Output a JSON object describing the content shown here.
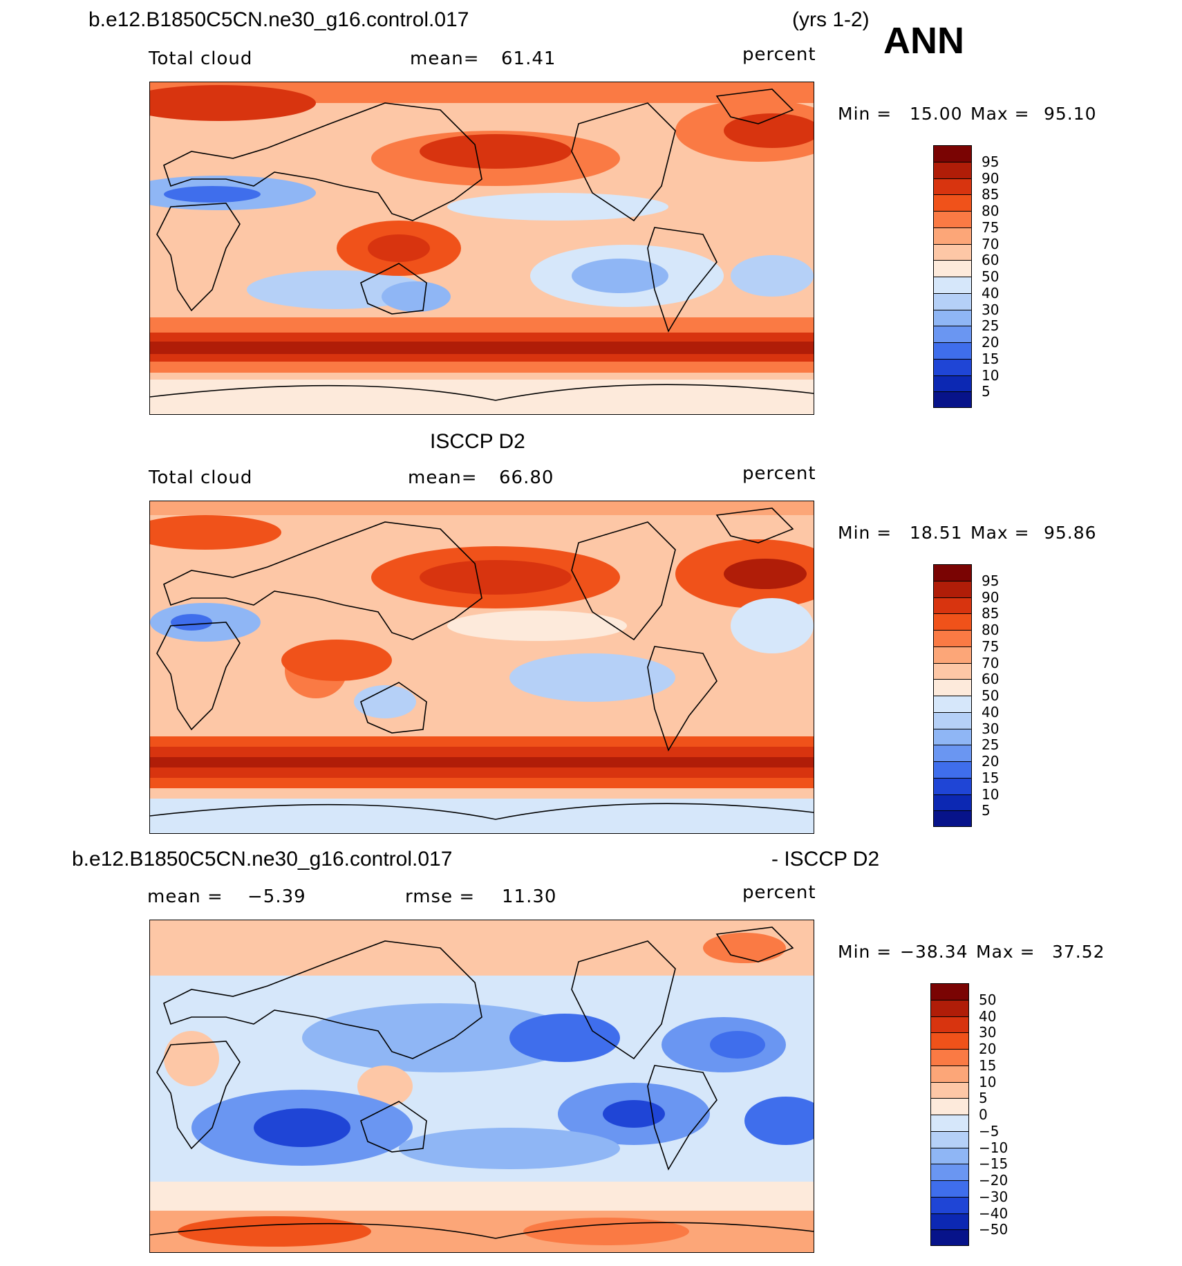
{
  "header": {
    "case_title": "b.e12.B1850C5CN.ne30_g16.control.017",
    "years": "(yrs 1-2)",
    "season": "ANN"
  },
  "panels": [
    {
      "id": "model",
      "variable": "Total cloud",
      "stat_label": "mean=",
      "stat_value": "61.41",
      "units": "percent",
      "min_label": "Min =",
      "min_value": "15.00",
      "max_label": "Max =",
      "max_value": "95.10"
    },
    {
      "id": "obs",
      "title": "ISCCP D2",
      "variable": "Total cloud",
      "stat_label": "mean=",
      "stat_value": "66.80",
      "units": "percent",
      "min_label": "Min =",
      "min_value": "18.51",
      "max_label": "Max =",
      "max_value": "95.86"
    },
    {
      "id": "diff",
      "title_left": "b.e12.B1850C5CN.ne30_g16.control.017",
      "title_right": "- ISCCP D2",
      "mean_label": "mean =",
      "mean_value": "−5.39",
      "rmse_label": "rmse =",
      "rmse_value": "11.30",
      "units": "percent",
      "min_label": "Min =",
      "min_value": "−38.34",
      "max_label": "Max =",
      "max_value": "37.52"
    }
  ],
  "chart_data": [
    {
      "type": "heatmap",
      "title": "Total cloud (model)",
      "units": "percent",
      "mean": 61.41,
      "min": 15.0,
      "max": 95.1,
      "levels": [
        "95",
        "90",
        "85",
        "80",
        "75",
        "70",
        "60",
        "50",
        "40",
        "30",
        "25",
        "20",
        "15",
        "10",
        "5"
      ],
      "colors": [
        "#7a0403",
        "#b01d08",
        "#d8340f",
        "#f0521a",
        "#fa7a44",
        "#fca678",
        "#fdc7a6",
        "#fdeadb",
        "#d6e7fa",
        "#b5d0f7",
        "#8fb6f5",
        "#6a96f2",
        "#3f6eec",
        "#1f45d6",
        "#0c28b3",
        "#07138a"
      ]
    },
    {
      "type": "heatmap",
      "title": "Total cloud (ISCCP D2)",
      "units": "percent",
      "mean": 66.8,
      "min": 18.51,
      "max": 95.86,
      "levels": [
        "95",
        "90",
        "85",
        "80",
        "75",
        "70",
        "60",
        "50",
        "40",
        "30",
        "25",
        "20",
        "15",
        "10",
        "5"
      ],
      "colors": [
        "#7a0403",
        "#b01d08",
        "#d8340f",
        "#f0521a",
        "#fa7a44",
        "#fca678",
        "#fdc7a6",
        "#fdeadb",
        "#d6e7fa",
        "#b5d0f7",
        "#8fb6f5",
        "#6a96f2",
        "#3f6eec",
        "#1f45d6",
        "#0c28b3",
        "#07138a"
      ]
    },
    {
      "type": "heatmap",
      "title": "Total cloud difference (model - ISCCP D2)",
      "units": "percent",
      "mean": -5.39,
      "rmse": 11.3,
      "min": -38.34,
      "max": 37.52,
      "levels": [
        "50",
        "40",
        "30",
        "20",
        "15",
        "10",
        "5",
        "0",
        "−5",
        "−10",
        "−15",
        "−20",
        "−30",
        "−40",
        "−50"
      ],
      "colors": [
        "#7a0403",
        "#b01d08",
        "#d8340f",
        "#f0521a",
        "#fa7a44",
        "#fca678",
        "#fdc7a6",
        "#fdeadb",
        "#d6e7fa",
        "#b5d0f7",
        "#8fb6f5",
        "#6a96f2",
        "#3f6eec",
        "#1f45d6",
        "#0c28b3",
        "#07138a"
      ]
    }
  ]
}
